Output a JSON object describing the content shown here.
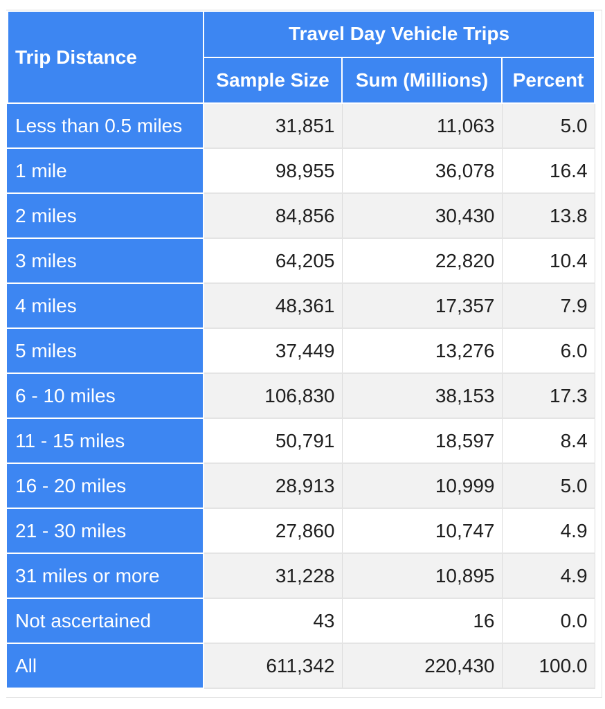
{
  "table": {
    "stub_header": "Trip Distance",
    "group_header": "Travel Day Vehicle Trips",
    "columns": [
      "Sample Size",
      "Sum (Millions)",
      "Percent"
    ],
    "rows": [
      {
        "label": "Less than 0.5 miles",
        "values": [
          "31,851",
          "11,063",
          "5.0"
        ]
      },
      {
        "label": "1 mile",
        "values": [
          "98,955",
          "36,078",
          "16.4"
        ]
      },
      {
        "label": "2 miles",
        "values": [
          "84,856",
          "30,430",
          "13.8"
        ]
      },
      {
        "label": "3 miles",
        "values": [
          "64,205",
          "22,820",
          "10.4"
        ]
      },
      {
        "label": "4 miles",
        "values": [
          "48,361",
          "17,357",
          "7.9"
        ]
      },
      {
        "label": "5 miles",
        "values": [
          "37,449",
          "13,276",
          "6.0"
        ]
      },
      {
        "label": "6 - 10 miles",
        "values": [
          "106,830",
          "38,153",
          "17.3"
        ]
      },
      {
        "label": "11 - 15 miles",
        "values": [
          "50,791",
          "18,597",
          "8.4"
        ]
      },
      {
        "label": "16 - 20 miles",
        "values": [
          "28,913",
          "10,999",
          "5.0"
        ]
      },
      {
        "label": "21 - 30 miles",
        "values": [
          "27,860",
          "10,747",
          "4.9"
        ]
      },
      {
        "label": "31 miles or more",
        "values": [
          "31,228",
          "10,895",
          "4.9"
        ]
      },
      {
        "label": "Not ascertained",
        "values": [
          "43",
          "16",
          "0.0"
        ]
      },
      {
        "label": "All",
        "values": [
          "611,342",
          "220,430",
          "100.0"
        ]
      }
    ]
  },
  "colors": {
    "header_blue": "#3d86f2",
    "header_text": "#ffffff",
    "stripe": "#f2f2f2"
  }
}
